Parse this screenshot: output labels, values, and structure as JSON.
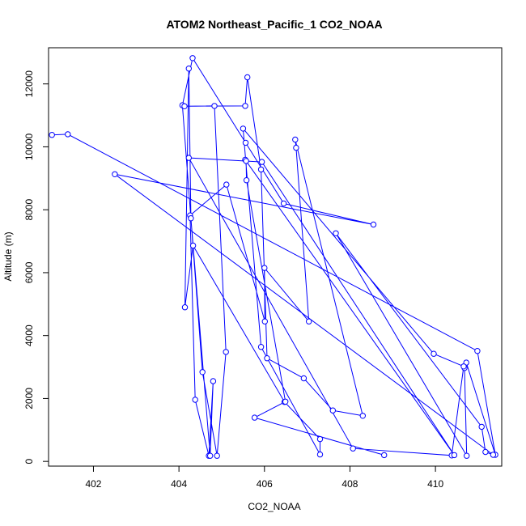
{
  "chart_data": {
    "type": "line",
    "title": "ATOM2 Northeast_Pacific_1 CO2_NOAA",
    "xlabel": "CO2_NOAA",
    "ylabel": "Altitude (m)",
    "xlim": [
      400.95,
      411.55
    ],
    "ylim": [
      -150,
      13150
    ],
    "xticks": [
      402,
      404,
      406,
      408,
      410
    ],
    "yticks": [
      0,
      2000,
      4000,
      6000,
      8000,
      10000,
      12000
    ],
    "xtick_labels": [
      "402",
      "404",
      "406",
      "408",
      "410"
    ],
    "ytick_labels": [
      "0",
      "2000",
      "4000",
      "6000",
      "8000",
      "10000",
      "12000"
    ],
    "grid": false,
    "marker": "open-circle",
    "color": "#0000ff",
    "series": [
      {
        "x": [
          401.03,
          401.4,
          410.98,
          411.4,
          410.72,
          410.68,
          410.73,
          407.67,
          411.08,
          411.17,
          411.35,
          402.5,
          408.55,
          406.45,
          405.56,
          404.32,
          404.08,
          404.55,
          404.89,
          405.1,
          404.83,
          404.13,
          405.55,
          405.6,
          405.92,
          406.06,
          406.92,
          407.6,
          408.3,
          406.72,
          406.74,
          407.04,
          406.0,
          406.01,
          405.11,
          404.26,
          404.38,
          404.7,
          404.8,
          404.73,
          404.28,
          404.23,
          404.14,
          404.33,
          406.47,
          407.3,
          407.3,
          405.92,
          405.5,
          409.96,
          410.66,
          410.38,
          408.07,
          404.23,
          405.94,
          410.44,
          405.55,
          405.57,
          405.58,
          406.49,
          405.77,
          408.8
        ],
        "y": [
          10380,
          10400,
          3510,
          210,
          3140,
          2970,
          180,
          7250,
          1100,
          300,
          210,
          9130,
          7530,
          8200,
          10130,
          12820,
          11320,
          2840,
          180,
          3480,
          11300,
          11290,
          11300,
          12210,
          9280,
          3280,
          2640,
          1620,
          1450,
          10230,
          9970,
          4450,
          6150,
          4450,
          8800,
          7820,
          1960,
          180,
          2550,
          180,
          7730,
          12490,
          4900,
          6860,
          1890,
          710,
          220,
          3640,
          10580,
          3420,
          3020,
          190,
          410,
          9650,
          9520,
          200,
          9590,
          9550,
          8940,
          1900,
          1390,
          200
        ]
      }
    ]
  }
}
